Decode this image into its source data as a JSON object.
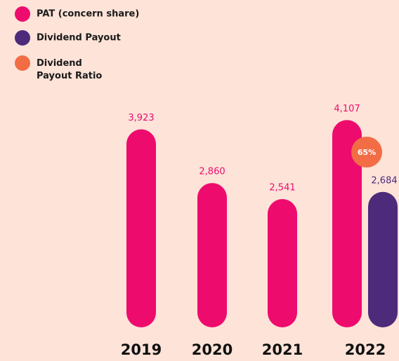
{
  "chart_data": {
    "type": "bar",
    "categories": [
      "2019",
      "2020",
      "2021",
      "2022"
    ],
    "series": [
      {
        "name": "PAT (concern share)",
        "color": "#ee0b6e",
        "values": [
          3923,
          2860,
          2541,
          4107
        ],
        "value_labels": [
          "3,923",
          "2,860",
          "2,541",
          "4,107"
        ]
      },
      {
        "name": "Dividend Payout",
        "color": "#4e2a7a",
        "values": [
          null,
          null,
          null,
          2684
        ],
        "value_labels": [
          null,
          null,
          null,
          "2,684"
        ]
      }
    ],
    "ratio": {
      "name": "Dividend Payout Ratio",
      "color": "#f26d45",
      "values": [
        null,
        null,
        null,
        65
      ],
      "value_labels": [
        null,
        null,
        null,
        "65%"
      ]
    },
    "ylim": [
      0,
      4500
    ]
  }
}
